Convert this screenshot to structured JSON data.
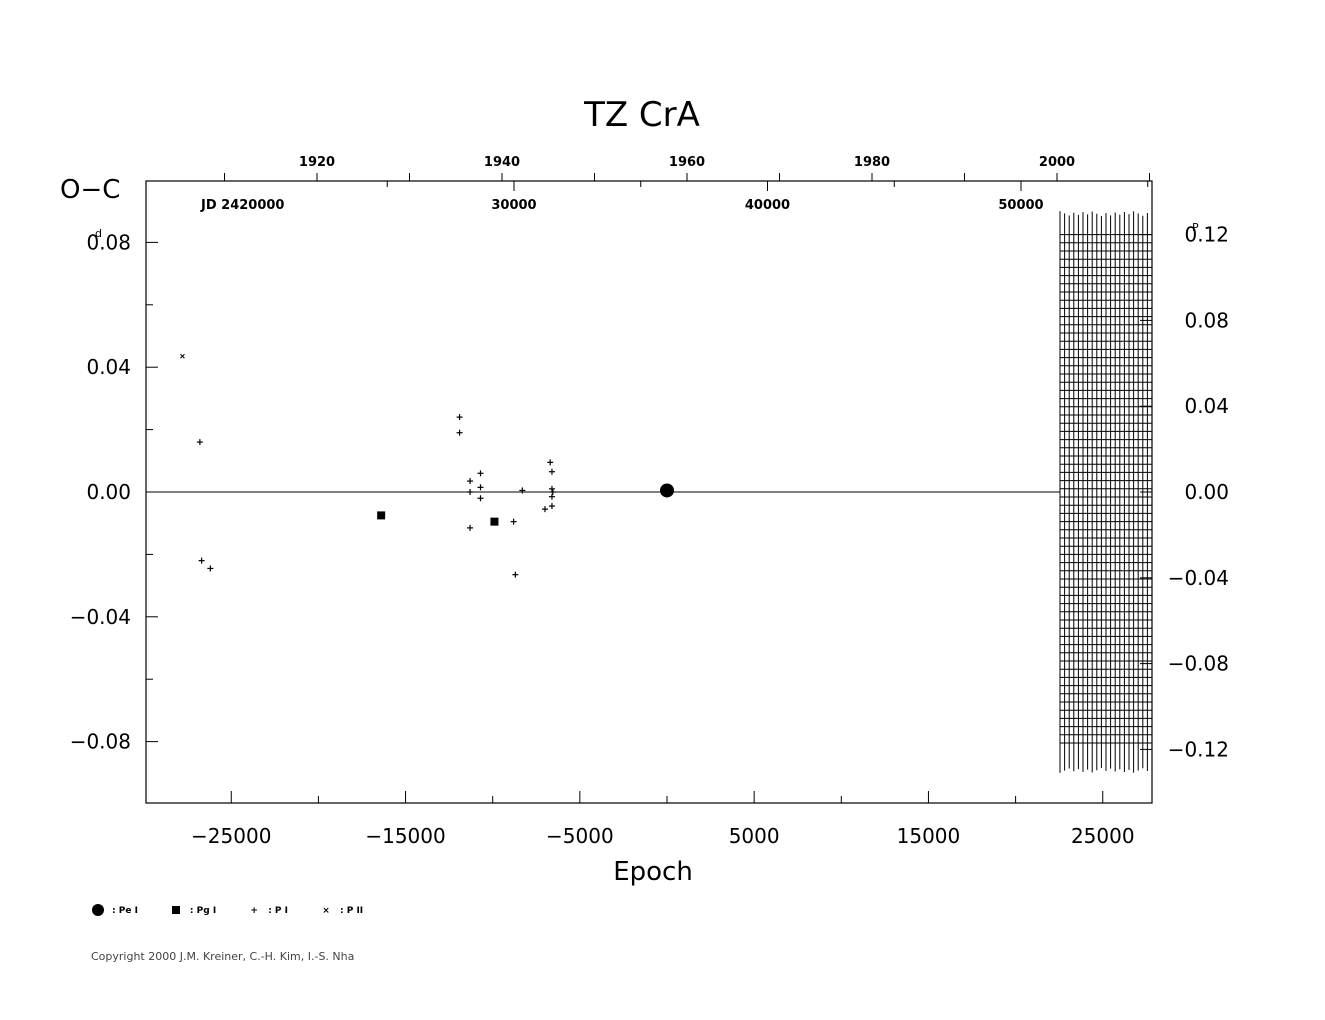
{
  "chart_data": {
    "type": "scatter",
    "title": "TZ  CrA",
    "ylabel": "O−C",
    "xlabel": "Epoch",
    "y_unit": "d",
    "right_unit": "P",
    "jd_label": "JD  2420000",
    "xlim": [
      -30000,
      28000
    ],
    "ylim": [
      -0.1,
      0.1
    ],
    "right_lim": [
      -0.145,
      0.145
    ],
    "x_ticks": [
      -25000,
      -15000,
      -5000,
      5000,
      15000,
      25000
    ],
    "x_tick_labels": [
      "−25000",
      "−15000",
      "−5000",
      "5000",
      "15000",
      "25000"
    ],
    "y_ticks": [
      0.08,
      0.04,
      0.0,
      -0.04,
      -0.08
    ],
    "y_tick_labels": [
      "0.08",
      "0.04",
      "0.00",
      "−0.04",
      "−0.08"
    ],
    "right_ticks": [
      0.12,
      0.08,
      0.04,
      0.0,
      -0.04,
      -0.08,
      -0.12
    ],
    "right_tick_labels": [
      "0.12",
      "0.08",
      "0.04",
      "0.00",
      "−0.04",
      "−0.08",
      "−0.12"
    ],
    "year_ticks": [
      1920,
      1940,
      1960,
      1980,
      2000
    ],
    "jd_ticks": [
      30000,
      40000,
      50000
    ],
    "series": [
      {
        "name": "Pe I",
        "symbol": "circle",
        "points": [
          [
            0,
            0.0005
          ]
        ]
      },
      {
        "name": "Pg I",
        "symbol": "square",
        "points": [
          [
            -16400,
            -0.0075
          ],
          [
            -9900,
            -0.0095
          ]
        ]
      },
      {
        "name": "P I",
        "symbol": "plus",
        "points": [
          [
            -26800,
            0.016
          ],
          [
            -26700,
            -0.022
          ],
          [
            -26200,
            -0.0245
          ],
          [
            -11900,
            0.024
          ],
          [
            -11900,
            0.019
          ],
          [
            -11300,
            0.0035
          ],
          [
            -11300,
            0.0
          ],
          [
            -11300,
            -0.0115
          ],
          [
            -10700,
            0.006
          ],
          [
            -10700,
            0.0015
          ],
          [
            -10700,
            -0.002
          ],
          [
            -8800,
            -0.0095
          ],
          [
            -8700,
            -0.0265
          ],
          [
            -8300,
            0.0005
          ],
          [
            -7000,
            -0.0055
          ],
          [
            -6700,
            0.0095
          ],
          [
            -6600,
            0.0065
          ],
          [
            -6600,
            0.001
          ],
          [
            -6550,
            0.0
          ],
          [
            -6600,
            -0.0015
          ],
          [
            -6600,
            -0.0045
          ]
        ]
      },
      {
        "name": "P II",
        "symbol": "x",
        "points": [
          [
            -27800,
            0.0435
          ]
        ]
      }
    ]
  },
  "legend": [
    {
      "symbol": "circle",
      "label": ": Pe I"
    },
    {
      "symbol": "square",
      "label": ": Pg I"
    },
    {
      "symbol": "plus",
      "label": ": P I"
    },
    {
      "symbol": "x",
      "label": ": P II"
    }
  ],
  "copyright": "Copyright 2000 J.M. Kreiner, C.-H. Kim, I.-S. Nha"
}
